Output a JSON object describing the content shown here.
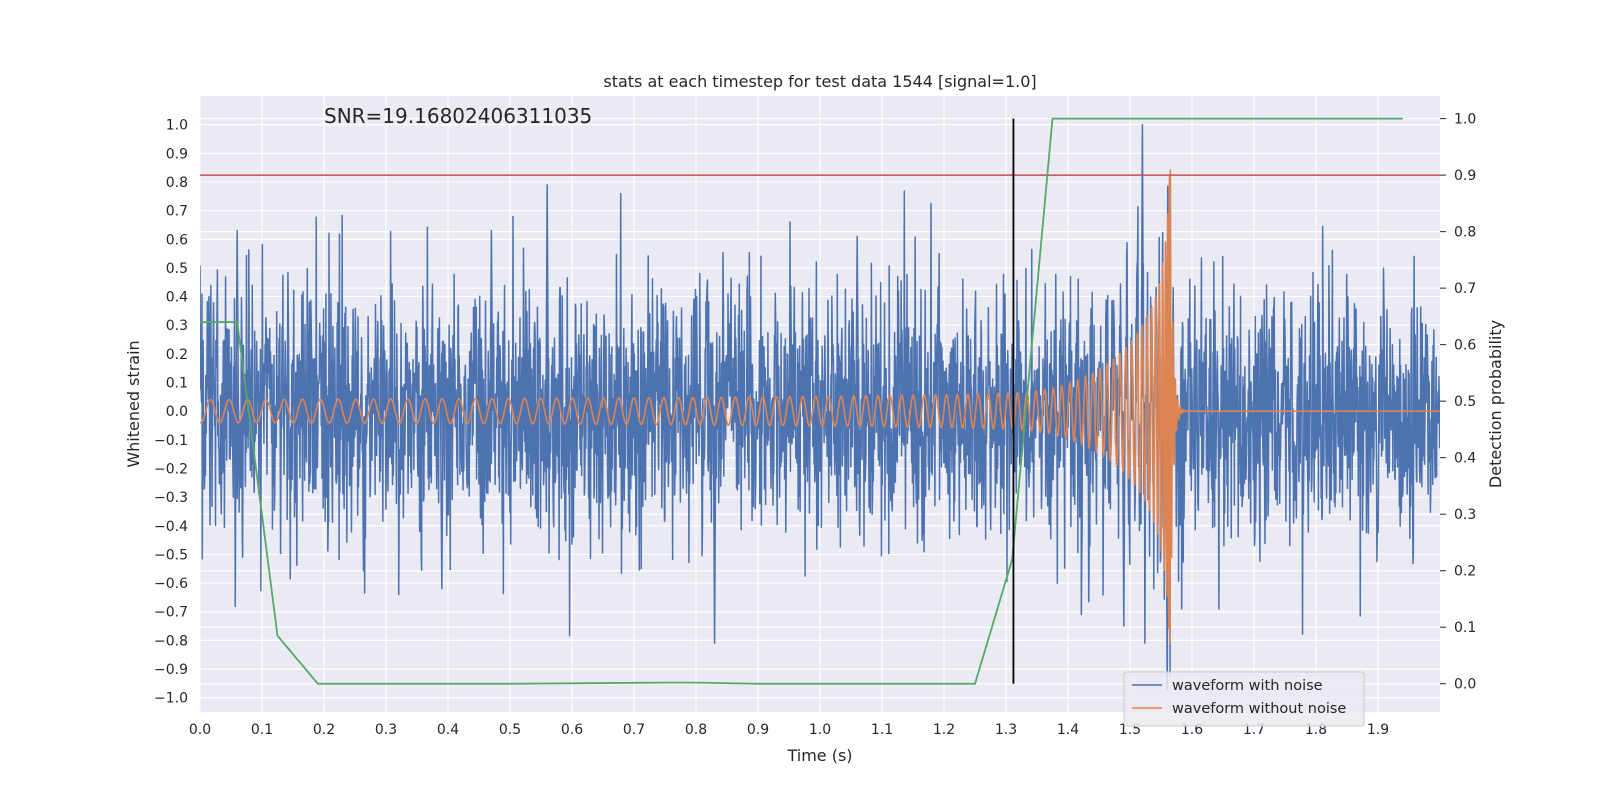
{
  "chart_data": {
    "type": "line",
    "title": "stats at each timestep for test data 1544 [signal=1.0]",
    "xlabel": "Time (s)",
    "ylabel": "Whitened strain",
    "y2label": "Detection probability",
    "annotation": "SNR=19.16802406311035",
    "xlim": [
      0.0,
      2.0
    ],
    "ylim": [
      -1.05,
      1.1
    ],
    "y2lim": [
      -0.05,
      1.04
    ],
    "xticks": [
      "0.0",
      "0.1",
      "0.2",
      "0.3",
      "0.4",
      "0.5",
      "0.6",
      "0.7",
      "0.8",
      "0.9",
      "1.0",
      "1.1",
      "1.2",
      "1.3",
      "1.4",
      "1.5",
      "1.6",
      "1.7",
      "1.8",
      "1.9"
    ],
    "yticks": [
      "1.0",
      "0.9",
      "0.8",
      "0.7",
      "0.6",
      "0.5",
      "0.4",
      "0.3",
      "0.2",
      "0.1",
      "0.0",
      "−0.1",
      "−0.2",
      "−0.3",
      "−0.4",
      "−0.5",
      "−0.6",
      "−0.7",
      "−0.8",
      "−0.9",
      "−1.0"
    ],
    "y2ticks": [
      "1.0",
      "0.9",
      "0.8",
      "0.7",
      "0.6",
      "0.5",
      "0.4",
      "0.3",
      "0.2",
      "0.1",
      "0.0"
    ],
    "grid": true,
    "legend_position": "lower-right",
    "threshold": {
      "axis": "y2",
      "value": 0.9,
      "color": "#c44e52"
    },
    "marker_line": {
      "x": 1.312,
      "y2_from": 0.0,
      "y2_to": 1.0,
      "color": "#000000"
    },
    "series": [
      {
        "name": "waveform with noise",
        "color": "#4c72b0",
        "axis": "y",
        "kind": "noise",
        "approx_std": 0.22,
        "peaks": [
          {
            "x": 0.06,
            "y": 0.63
          },
          {
            "x": 0.56,
            "y": 0.79
          },
          {
            "x": 0.83,
            "y": -0.81
          },
          {
            "x": 1.52,
            "y": 1.0
          },
          {
            "x": 1.56,
            "y": -0.97
          },
          {
            "x": 1.49,
            "y": -0.75
          },
          {
            "x": 1.06,
            "y": 0.61
          },
          {
            "x": 0.47,
            "y": 0.63
          },
          {
            "x": 0.39,
            "y": -0.62
          }
        ]
      },
      {
        "name": "waveform without noise",
        "color": "#dd8452",
        "axis": "y",
        "kind": "chirp",
        "start_amplitude": 0.04,
        "peak_amplitude": 0.88,
        "merger_time": 1.565,
        "ringdown_end": 1.58
      },
      {
        "name": "Detection probability",
        "color": "#55a868",
        "axis": "y2",
        "x": [
          0.0,
          0.06,
          0.125,
          0.19,
          0.5,
          0.75,
          0.8,
          0.9,
          1.25,
          1.31,
          1.375,
          1.44,
          1.94
        ],
        "y": [
          0.64,
          0.64,
          0.085,
          0.0,
          0.0,
          0.002,
          0.002,
          0.0,
          0.0,
          0.22,
          1.0,
          1.0,
          1.0
        ]
      }
    ]
  }
}
